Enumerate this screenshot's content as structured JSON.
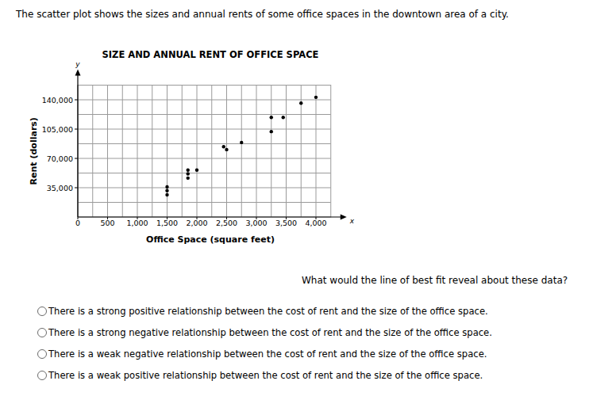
{
  "intro": "The scatter plot shows the sizes and annual rents of some office spaces in the downtown area of a city.",
  "chart_data": {
    "type": "scatter",
    "title": "SIZE AND ANNUAL RENT OF OFFICE SPACE",
    "x_label": "Office Space (square feet)",
    "y_label": "Rent (dollars)",
    "annotations": [
      "y",
      "x"
    ],
    "x": [
      1500,
      1500,
      1500,
      1850,
      1850,
      1850,
      2000,
      2450,
      2500,
      2750,
      3250,
      3450,
      3250,
      3750,
      4000
    ],
    "values": [
      36000,
      31500,
      26500,
      56000,
      51500,
      46500,
      56000,
      84000,
      80500,
      89000,
      119000,
      119000,
      102000,
      136000,
      143000
    ],
    "color": "#000000",
    "marker": "circle",
    "xlim": [
      0,
      4250
    ],
    "ylim": [
      0,
      157500
    ],
    "xticks": [
      0,
      500,
      {
        "value": 1000,
        "label": "1,000"
      },
      {
        "value": 1500,
        "label": "1,500"
      },
      {
        "value": 2000,
        "label": "2,000"
      },
      {
        "value": 2500,
        "label": "2,500"
      },
      {
        "value": 3000,
        "label": "3,000"
      },
      {
        "value": 3500,
        "label": "3,500"
      },
      {
        "value": 4000,
        "label": "4,000"
      }
    ],
    "yticks": [
      {
        "value": 35000,
        "label": "35,000"
      },
      {
        "value": 70000,
        "label": "70,000"
      },
      {
        "value": 105000,
        "label": "105,000"
      },
      {
        "value": 140000,
        "label": "140,000"
      }
    ],
    "grid": true
  },
  "question": "What would the line of best fit reveal about these data?",
  "options": [
    "There is a strong positive relationship between the cost of rent and the size of the office space.",
    "There is a strong negative relationship between the cost of rent and the size of the office space.",
    "There is a weak negative relationship between the cost of rent and the size of the office space.",
    "There is a weak positive relationship between the cost of rent and the size of the office space."
  ]
}
